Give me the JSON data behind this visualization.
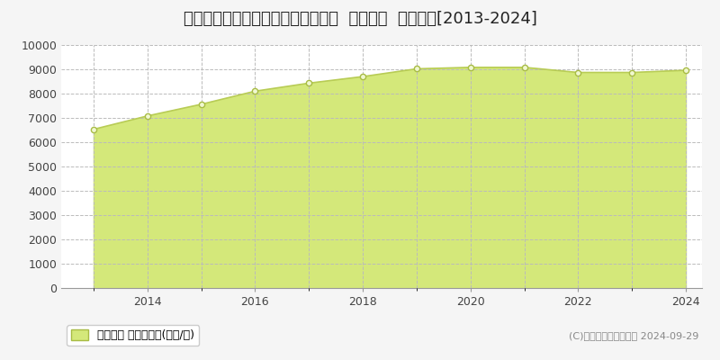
{
  "title": "東京都千代田区丸の内三丁目２番外  基準地価  地価推移[2013-2024]",
  "years": [
    2013,
    2014,
    2015,
    2016,
    2017,
    2018,
    2019,
    2020,
    2021,
    2022,
    2023,
    2024
  ],
  "values": [
    6530,
    7080,
    7560,
    8100,
    8430,
    8700,
    9020,
    9080,
    9080,
    8870,
    8870,
    8960
  ],
  "line_color": "#b8cc55",
  "fill_color": "#d4e87a",
  "marker_color": "#a8bc45",
  "marker_face": "#f0f8d0",
  "bg_color": "#f5f5f5",
  "plot_bg_color": "#ffffff",
  "grid_color": "#bbbbbb",
  "ylim": [
    0,
    10000
  ],
  "yticks": [
    0,
    1000,
    2000,
    3000,
    4000,
    5000,
    6000,
    7000,
    8000,
    9000,
    10000
  ],
  "legend_label": "基準地価 平均坪単価(万円/坪)",
  "copyright_text": "(C)土地価格ドットコム 2024-09-29",
  "title_fontsize": 13,
  "tick_fontsize": 9,
  "legend_fontsize": 9
}
